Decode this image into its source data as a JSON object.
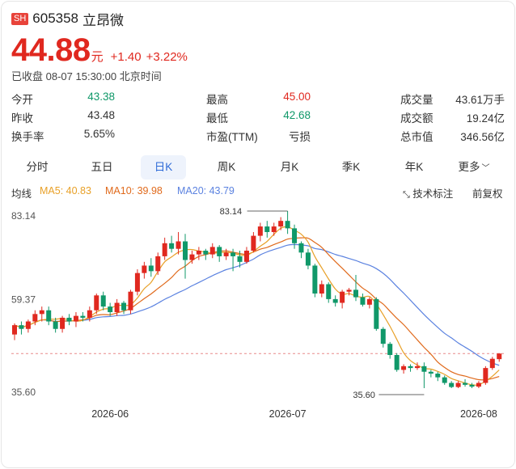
{
  "header": {
    "exchange": "SH",
    "code": "605358",
    "name": "立昂微"
  },
  "quote": {
    "price": "44.88",
    "unit": "元",
    "change": "+1.40",
    "change_pct": "+3.22%"
  },
  "status": {
    "text": "已收盘",
    "datetime": "08-07 15:30:00",
    "timezone": "北京时间"
  },
  "stats": [
    [
      {
        "label": "今开",
        "value": "43.38",
        "tone": "down"
      },
      {
        "label": "最高",
        "value": "45.00",
        "tone": "up"
      },
      {
        "label": "成交量",
        "value": "43.61万手",
        "tone": "neu"
      }
    ],
    [
      {
        "label": "昨收",
        "value": "43.48",
        "tone": "neu"
      },
      {
        "label": "最低",
        "value": "42.68",
        "tone": "down"
      },
      {
        "label": "成交额",
        "value": "19.24亿",
        "tone": "neu"
      }
    ],
    [
      {
        "label": "换手率",
        "value": "5.65%",
        "tone": "neu"
      },
      {
        "label": "市盈(TTM)",
        "value": "亏损",
        "tone": "neu"
      },
      {
        "label": "总市值",
        "value": "346.56亿",
        "tone": "neu"
      }
    ]
  ],
  "tabs": [
    "分时",
    "五日",
    "日K",
    "周K",
    "月K",
    "季K",
    "年K",
    "更多"
  ],
  "active_tab": 2,
  "legend": {
    "title": "均线",
    "ma5": "MA5: 40.83",
    "ma10": "MA10: 39.98",
    "ma20": "MA20: 43.79",
    "tech_label": "技术标注",
    "adjust": "前复权"
  },
  "colors": {
    "up": "#e0281f",
    "down": "#109869",
    "ma5": "#e8a027",
    "ma10": "#e06a1c",
    "ma20": "#5b82e0",
    "accent": "#2e6bd8"
  },
  "chart_data": {
    "type": "candlestick",
    "y_ticks": [
      "83.14",
      "59.37",
      "35.60"
    ],
    "ylim": [
      35.6,
      83.14
    ],
    "x_ticks": [
      {
        "label": "2026-06",
        "index": 14
      },
      {
        "label": "2026-07",
        "index": 40
      },
      {
        "label": "2026-08",
        "index": 68
      }
    ],
    "max_label": {
      "value": "83.14",
      "index": 40
    },
    "min_label": {
      "value": "35.60",
      "index": 60
    },
    "current_price": 44.88,
    "candles": [
      [
        50.0,
        52.5,
        48.5,
        53.0
      ],
      [
        52.5,
        51.5,
        50.0,
        53.5
      ],
      [
        51.5,
        53.5,
        50.5,
        54.0
      ],
      [
        53.5,
        55.5,
        52.5,
        56.5
      ],
      [
        55.5,
        56.5,
        53.5,
        57.5
      ],
      [
        56.5,
        53.5,
        52.5,
        57.5
      ],
      [
        53.5,
        51.5,
        50.5,
        54.5
      ],
      [
        51.5,
        54.5,
        50.5,
        55.0
      ],
      [
        54.5,
        53.5,
        52.5,
        55.5
      ],
      [
        53.5,
        55.0,
        52.0,
        56.0
      ],
      [
        55.0,
        54.5,
        53.5,
        56.0
      ],
      [
        54.5,
        56.5,
        53.5,
        57.5
      ],
      [
        56.5,
        60.5,
        55.5,
        61.0
      ],
      [
        60.5,
        57.5,
        56.5,
        61.5
      ],
      [
        57.5,
        56.0,
        55.0,
        58.5
      ],
      [
        56.0,
        58.5,
        55.0,
        59.5
      ],
      [
        58.5,
        56.5,
        55.5,
        59.0
      ],
      [
        56.5,
        61.5,
        55.5,
        62.0
      ],
      [
        61.5,
        66.5,
        60.5,
        67.5
      ],
      [
        66.5,
        68.5,
        65.0,
        69.5
      ],
      [
        68.5,
        67.0,
        65.5,
        70.5
      ],
      [
        67.0,
        71.0,
        66.0,
        72.0
      ],
      [
        71.0,
        74.5,
        70.0,
        76.0
      ],
      [
        74.5,
        73.0,
        72.0,
        76.5
      ],
      [
        73.0,
        75.0,
        71.5,
        77.5
      ],
      [
        75.0,
        70.0,
        65.0,
        77.0
      ],
      [
        70.0,
        71.5,
        69.0,
        72.5
      ],
      [
        71.5,
        72.5,
        70.0,
        73.5
      ],
      [
        72.5,
        71.5,
        70.0,
        73.0
      ],
      [
        71.5,
        73.5,
        70.5,
        74.5
      ],
      [
        73.5,
        71.0,
        69.5,
        74.0
      ],
      [
        71.0,
        72.0,
        70.0,
        73.0
      ],
      [
        72.0,
        71.0,
        67.0,
        73.0
      ],
      [
        71.0,
        69.5,
        68.0,
        72.5
      ],
      [
        69.5,
        72.5,
        69.0,
        73.5
      ],
      [
        72.5,
        76.5,
        72.0,
        77.5
      ],
      [
        76.5,
        79.0,
        75.0,
        80.0
      ],
      [
        79.0,
        77.5,
        76.0,
        80.5
      ],
      [
        77.5,
        79.0,
        76.5,
        80.0
      ],
      [
        79.0,
        80.5,
        78.0,
        81.5
      ],
      [
        80.5,
        78.5,
        77.0,
        83.14
      ],
      [
        78.5,
        74.5,
        73.0,
        79.5
      ],
      [
        74.5,
        72.0,
        70.5,
        75.0
      ],
      [
        72.0,
        68.5,
        67.5,
        73.0
      ],
      [
        68.5,
        61.0,
        60.0,
        69.0
      ],
      [
        61.0,
        63.5,
        60.0,
        64.5
      ],
      [
        63.5,
        59.5,
        58.5,
        64.0
      ],
      [
        59.5,
        58.5,
        57.5,
        60.5
      ],
      [
        58.5,
        61.5,
        57.0,
        62.0
      ],
      [
        61.5,
        62.0,
        60.5,
        62.5
      ],
      [
        62.0,
        60.0,
        59.0,
        66.0
      ],
      [
        60.0,
        58.0,
        57.5,
        61.0
      ],
      [
        58.0,
        59.5,
        57.0,
        60.0
      ],
      [
        59.5,
        51.5,
        51.0,
        60.0
      ],
      [
        51.5,
        47.5,
        46.5,
        52.0
      ],
      [
        47.5,
        44.5,
        43.5,
        48.0
      ],
      [
        44.5,
        40.5,
        40.0,
        45.0
      ],
      [
        40.5,
        41.5,
        39.5,
        42.0
      ],
      [
        41.5,
        41.0,
        40.0,
        42.0
      ],
      [
        41.0,
        41.5,
        40.5,
        42.5
      ],
      [
        41.5,
        40.0,
        35.6,
        42.5
      ],
      [
        40.0,
        39.5,
        38.5,
        40.5
      ],
      [
        39.5,
        38.5,
        37.5,
        40.0
      ],
      [
        38.5,
        37.0,
        36.5,
        39.0
      ],
      [
        37.0,
        35.9,
        35.6,
        37.5
      ],
      [
        35.9,
        37.0,
        35.6,
        37.5
      ],
      [
        37.0,
        36.5,
        36.0,
        38.0
      ],
      [
        36.5,
        36.0,
        35.6,
        37.0
      ],
      [
        36.0,
        37.0,
        35.6,
        37.5
      ],
      [
        37.0,
        41.0,
        36.5,
        41.5
      ],
      [
        41.0,
        43.48,
        40.5,
        44.0
      ],
      [
        43.38,
        44.88,
        42.68,
        45.0
      ]
    ]
  }
}
